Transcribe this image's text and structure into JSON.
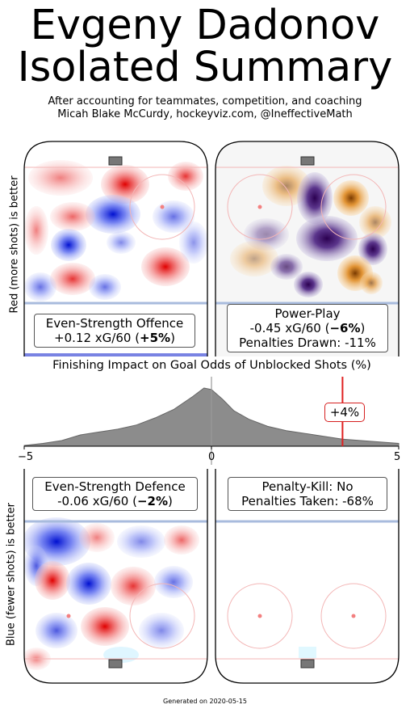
{
  "title_line1": "Evgeny Dadonov",
  "title_line2": "Isolated Summary",
  "subtitle_line1": "After accounting for teammates, competition, and coaching",
  "subtitle_line2": "Micah Blake McCurdy, hockeyviz.com, @IneffectiveMath",
  "y_label_top": "Red (more shots) is better",
  "y_label_bottom": "Blue (fewer shots) is better",
  "footer": "Generated on 2020-05-15",
  "panels": {
    "es_offence": {
      "label": "Even-Strength Offence",
      "value": "+0.12 xG/60 (",
      "pct": "+5%",
      "close": ")"
    },
    "power_play": {
      "label": "Power-Play",
      "value": "-0.45 xG/60 (",
      "pct": "−6%",
      "close": ")",
      "extra": "Penalties Drawn: -11%"
    },
    "es_defence": {
      "label": "Even-Strength Defence",
      "value": "-0.06 xG/60 (",
      "pct": "−2%",
      "close": ")"
    },
    "penalty_kill": {
      "label": "Penalty-Kill: No",
      "extra": "Penalties Taken: -68%"
    }
  },
  "colors": {
    "red": "#e02020",
    "blue": "#2030d0",
    "orange": "#e08a20",
    "purple": "#3b0f6b",
    "density": "#8c8c8c"
  },
  "chart_data": {
    "type": "area",
    "title": "Finishing Impact on Goal Odds of Unblocked Shots (%)",
    "xlim": [
      -5,
      5
    ],
    "x_ticks": [
      "−5",
      "0",
      "5"
    ],
    "marker": {
      "x": 3.5,
      "label": "+4%"
    },
    "density": {
      "x": [
        -5,
        -4.5,
        -4,
        -3.5,
        -3,
        -2.5,
        -2,
        -1.5,
        -1,
        -0.5,
        -0.2,
        0,
        0.3,
        0.6,
        1,
        1.5,
        2,
        2.5,
        3,
        3.5,
        4,
        4.5,
        5
      ],
      "y": [
        0.01,
        0.04,
        0.08,
        0.16,
        0.2,
        0.24,
        0.3,
        0.4,
        0.52,
        0.7,
        0.82,
        0.8,
        0.66,
        0.5,
        0.38,
        0.28,
        0.22,
        0.18,
        0.14,
        0.1,
        0.08,
        0.06,
        0.04
      ]
    }
  }
}
